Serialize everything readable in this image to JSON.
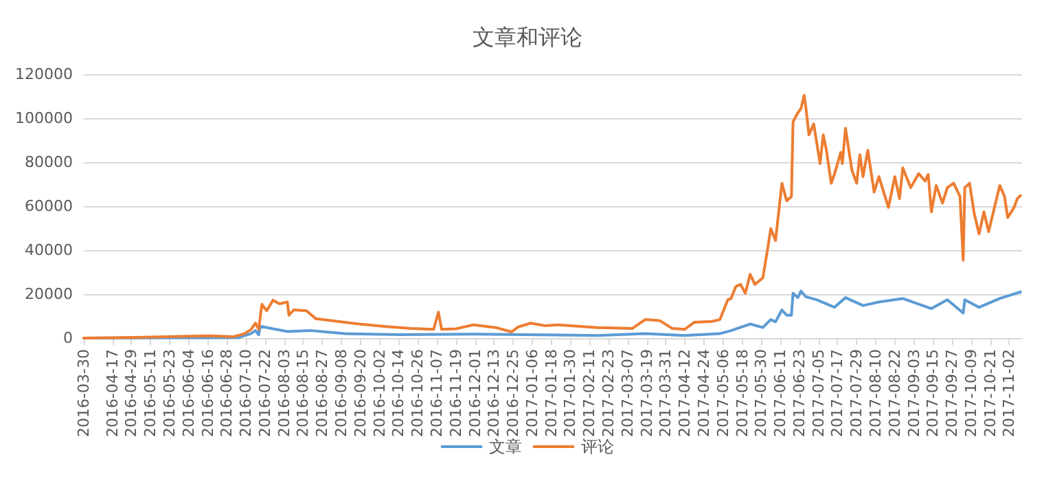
{
  "chart_data": {
    "type": "line",
    "title": "文章和评论",
    "xlim": [
      "2016-03-30",
      "2017-11-10"
    ],
    "xticks": [
      "2016-03-30",
      "2016-04-17",
      "2016-04-29",
      "2016-05-11",
      "2016-05-23",
      "2016-06-04",
      "2016-06-16",
      "2016-06-28",
      "2016-07-10",
      "2016-07-22",
      "2016-08-03",
      "2016-08-15",
      "2016-08-27",
      "2016-09-08",
      "2016-09-20",
      "2016-10-02",
      "2016-10-14",
      "2016-10-26",
      "2016-11-07",
      "2016-11-19",
      "2016-12-01",
      "2016-12-13",
      "2016-12-25",
      "2017-01-06",
      "2017-01-18",
      "2017-01-30",
      "2017-02-11",
      "2017-02-23",
      "2017-03-07",
      "2017-03-19",
      "2017-03-31",
      "2017-04-12",
      "2017-04-24",
      "2017-05-06",
      "2017-05-18",
      "2017-05-30",
      "2017-06-11",
      "2017-06-23",
      "2017-07-05",
      "2017-07-17",
      "2017-07-29",
      "2017-08-10",
      "2017-08-22",
      "2017-09-03",
      "2017-09-15",
      "2017-09-27",
      "2017-10-09",
      "2017-10-21",
      "2017-11-02"
    ],
    "ylim": [
      0,
      120000
    ],
    "yticks": [
      0,
      20000,
      40000,
      60000,
      80000,
      100000,
      120000
    ],
    "grid": "y",
    "legend": "bottom",
    "marker": "none",
    "line_style": "solid",
    "series": [
      {
        "name": "文章",
        "color": "#5b9bd5",
        "x": [
          "2016-03-30",
          "2016-05-01",
          "2016-07-05",
          "2016-07-13",
          "2016-07-16",
          "2016-07-18",
          "2016-07-19",
          "2016-07-27",
          "2016-08-05",
          "2016-08-20",
          "2016-09-10",
          "2016-10-15",
          "2016-12-01",
          "2017-01-22",
          "2017-02-16",
          "2017-03-18",
          "2017-04-12",
          "2017-05-04",
          "2017-05-11",
          "2017-05-23",
          "2017-05-31",
          "2017-06-05",
          "2017-06-08",
          "2017-06-12",
          "2017-06-15",
          "2017-06-18",
          "2017-06-19",
          "2017-06-22",
          "2017-06-24",
          "2017-06-27",
          "2017-07-04",
          "2017-07-15",
          "2017-07-22",
          "2017-08-02",
          "2017-08-12",
          "2017-08-27",
          "2017-09-14",
          "2017-09-24",
          "2017-10-04",
          "2017-10-05",
          "2017-10-14",
          "2017-10-27",
          "2017-11-09"
        ],
        "values": [
          0,
          100,
          200,
          2000,
          3400,
          1500,
          5400,
          4200,
          3000,
          3400,
          2000,
          1600,
          1800,
          1400,
          1200,
          2000,
          1200,
          2000,
          3400,
          6400,
          4800,
          8400,
          7400,
          12800,
          10400,
          10400,
          20400,
          18400,
          21400,
          18800,
          17400,
          14000,
          18400,
          14800,
          16400,
          18000,
          13400,
          17400,
          11400,
          17400,
          14000,
          18000,
          21000
        ]
      },
      {
        "name": "评论",
        "color": "#ed7d31",
        "x": [
          "2016-03-30",
          "2016-05-01",
          "2016-06-17",
          "2016-07-02",
          "2016-07-09",
          "2016-07-13",
          "2016-07-16",
          "2016-07-18",
          "2016-07-20",
          "2016-07-23",
          "2016-07-27",
          "2016-07-31",
          "2016-08-05",
          "2016-08-06",
          "2016-08-09",
          "2016-08-17",
          "2016-08-23",
          "2016-09-03",
          "2016-09-19",
          "2016-10-06",
          "2016-10-22",
          "2016-11-05",
          "2016-11-08",
          "2016-11-10",
          "2016-11-19",
          "2016-11-30",
          "2016-12-14",
          "2016-12-24",
          "2016-12-28",
          "2017-01-05",
          "2017-01-14",
          "2017-01-22",
          "2017-02-16",
          "2017-03-10",
          "2017-03-18",
          "2017-03-27",
          "2017-04-04",
          "2017-04-12",
          "2017-04-18",
          "2017-04-29",
          "2017-05-04",
          "2017-05-09",
          "2017-05-11",
          "2017-05-14",
          "2017-05-17",
          "2017-05-20",
          "2017-05-23",
          "2017-05-26",
          "2017-05-31",
          "2017-06-03",
          "2017-06-05",
          "2017-06-08",
          "2017-06-12",
          "2017-06-15",
          "2017-06-18",
          "2017-06-19",
          "2017-06-22",
          "2017-06-24",
          "2017-06-26",
          "2017-06-27",
          "2017-06-29",
          "2017-07-02",
          "2017-07-04",
          "2017-07-06",
          "2017-07-08",
          "2017-07-10",
          "2017-07-13",
          "2017-07-15",
          "2017-07-19",
          "2017-07-20",
          "2017-07-22",
          "2017-07-26",
          "2017-07-29",
          "2017-07-31",
          "2017-08-02",
          "2017-08-05",
          "2017-08-09",
          "2017-08-12",
          "2017-08-18",
          "2017-08-22",
          "2017-08-25",
          "2017-08-27",
          "2017-09-01",
          "2017-09-06",
          "2017-09-10",
          "2017-09-12",
          "2017-09-14",
          "2017-09-17",
          "2017-09-21",
          "2017-09-24",
          "2017-09-28",
          "2017-10-02",
          "2017-10-04",
          "2017-10-05",
          "2017-10-08",
          "2017-10-11",
          "2017-10-14",
          "2017-10-17",
          "2017-10-20",
          "2017-10-23",
          "2017-10-27",
          "2017-10-30",
          "2017-11-01",
          "2017-11-05",
          "2017-11-07",
          "2017-11-09"
        ],
        "values": [
          0,
          300,
          1000,
          600,
          2000,
          3800,
          6800,
          4000,
          15400,
          12400,
          17200,
          15600,
          16400,
          10400,
          12800,
          12400,
          8800,
          7800,
          6400,
          5200,
          4400,
          4000,
          11800,
          4000,
          4200,
          6000,
          4800,
          2800,
          5000,
          6800,
          5600,
          6000,
          4800,
          4400,
          8400,
          8000,
          4400,
          4000,
          7200,
          7600,
          8400,
          17400,
          18000,
          23400,
          24400,
          20400,
          29000,
          24400,
          27400,
          40400,
          49800,
          44400,
          70400,
          62400,
          64400,
          98400,
          102400,
          104400,
          110400,
          105400,
          92400,
          97400,
          88400,
          79400,
          92400,
          85400,
          70400,
          74400,
          84400,
          79400,
          95400,
          76400,
          70400,
          83400,
          73400,
          85400,
          66400,
          73400,
          59400,
          73400,
          63400,
          77400,
          68400,
          74800,
          71400,
          74400,
          57400,
          69400,
          61400,
          68400,
          70400,
          64400,
          35400,
          68400,
          70400,
          56400,
          47400,
          57400,
          48400,
          57400,
          69400,
          64400,
          54800,
          59400,
          63400,
          64800
        ]
      }
    ]
  }
}
